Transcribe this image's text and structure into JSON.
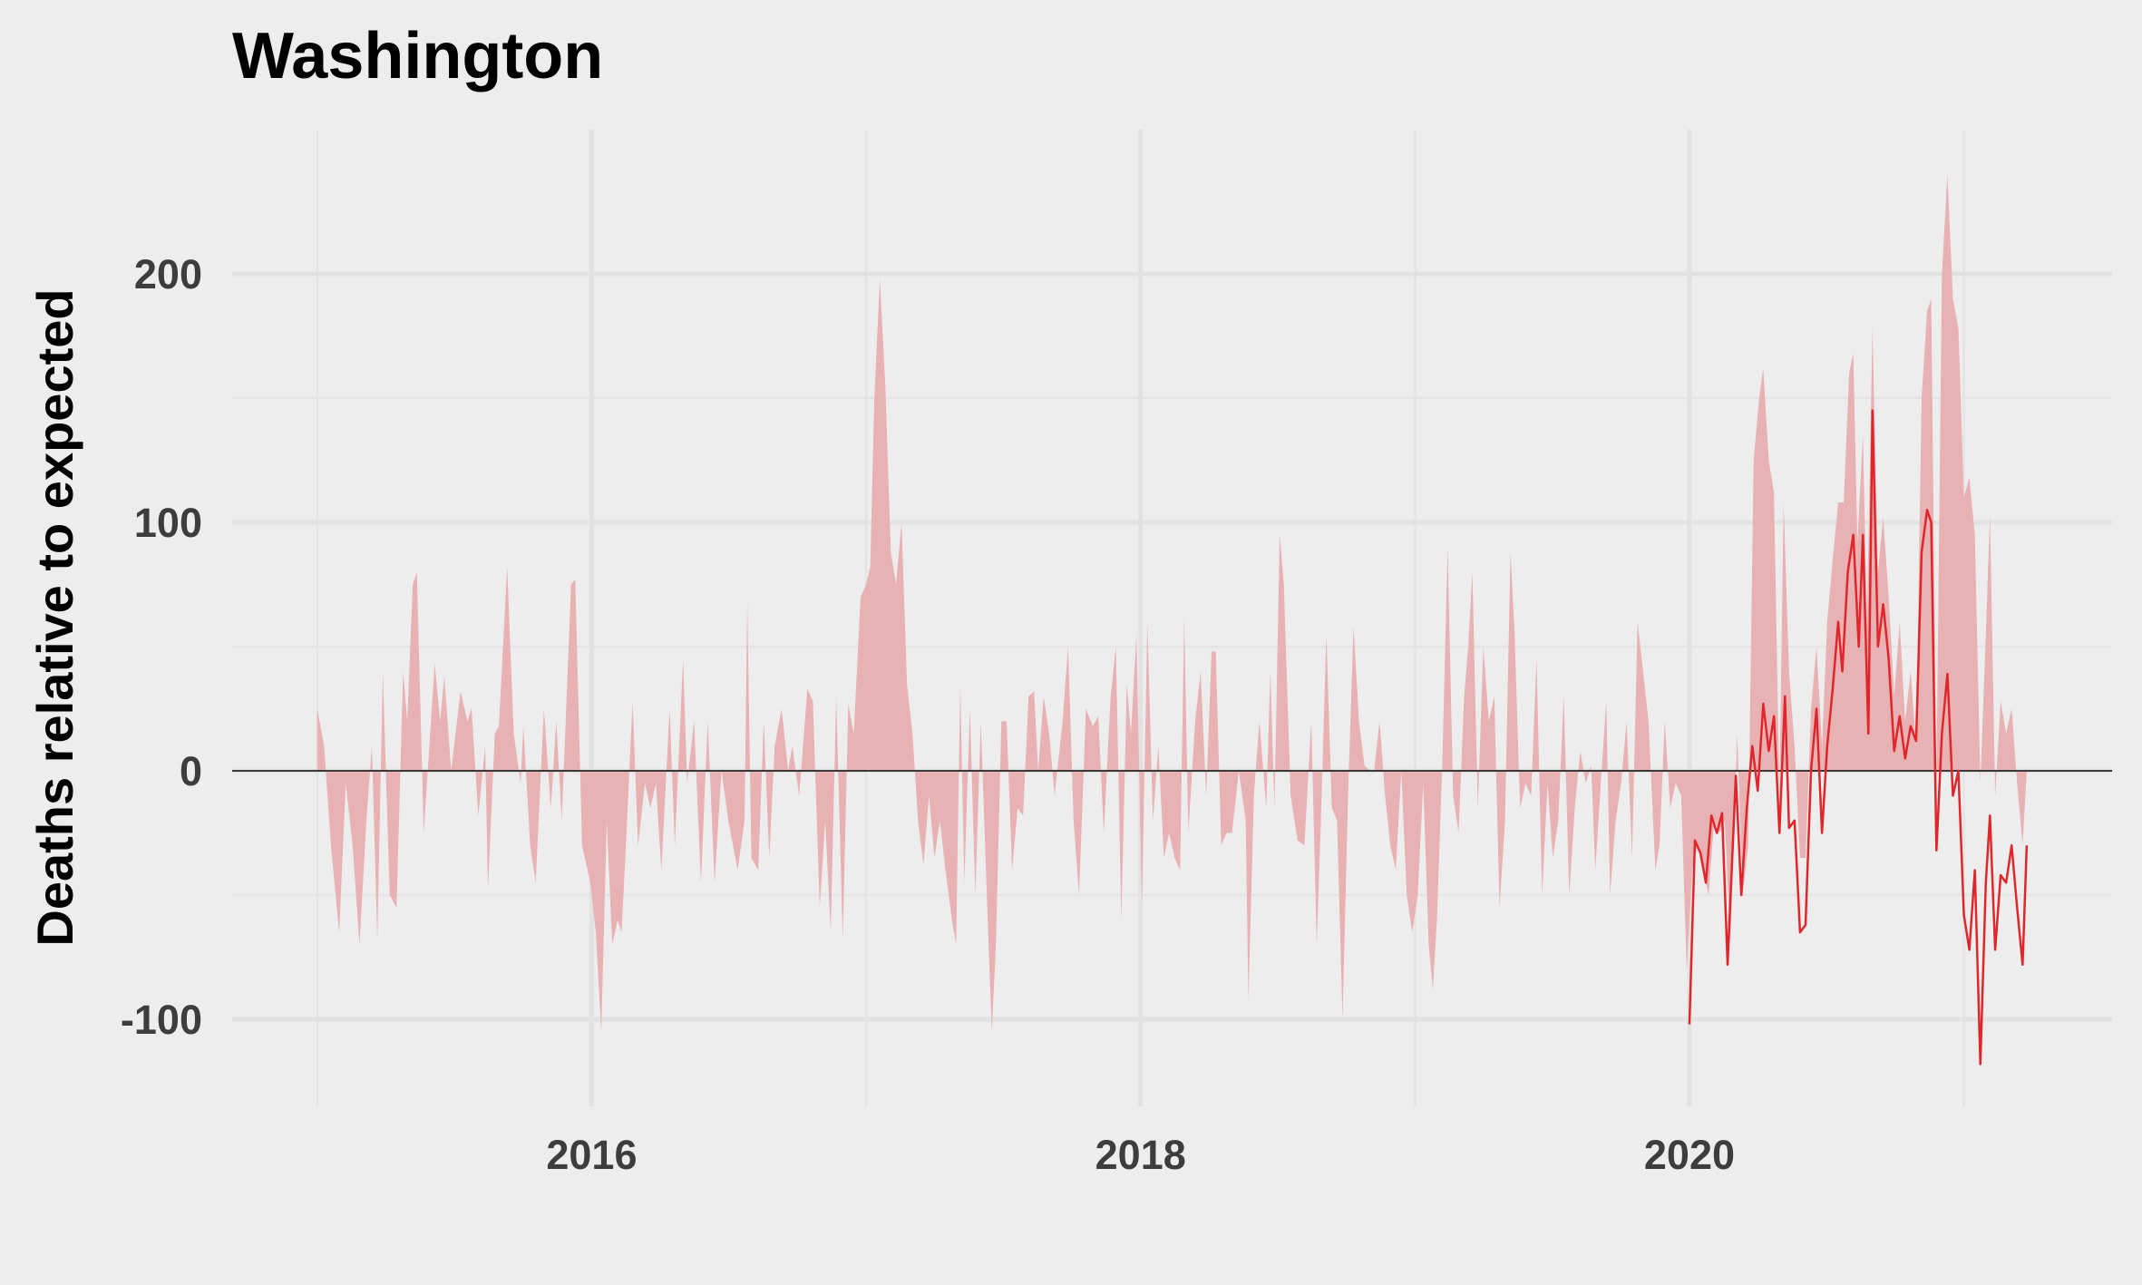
{
  "chart_data": {
    "type": "area",
    "title": "Washington",
    "y_label": "Deaths relative to expected",
    "xlim": [
      2014.69,
      2021.54
    ],
    "ylim": [
      -135,
      258
    ],
    "xticks": [
      2016,
      2018,
      2020
    ],
    "yticks": [
      -100,
      0,
      100,
      200
    ],
    "x_minor_grid": [
      2015,
      2017,
      2019,
      2021
    ],
    "y_minor_grid": [
      -50,
      50,
      150
    ],
    "grid": true,
    "zero_line": true,
    "series": [
      {
        "type": "area",
        "color": "#e8b1b3",
        "x": [
          2015.0,
          2015.025,
          2015.05,
          2015.08,
          2015.104,
          2015.129,
          2015.154,
          2015.179,
          2015.199,
          2015.219,
          2015.239,
          2015.264,
          2015.289,
          2015.313,
          2015.328,
          2015.348,
          2015.363,
          2015.388,
          2015.428,
          2015.448,
          2015.463,
          2015.488,
          2015.522,
          2015.547,
          2015.562,
          2015.587,
          2015.612,
          2015.622,
          2015.647,
          2015.662,
          2015.692,
          2015.716,
          2015.741,
          2015.751,
          2015.776,
          2015.796,
          2015.826,
          2015.851,
          2015.871,
          2015.891,
          2015.925,
          2015.94,
          2015.965,
          2015.995,
          2016.015,
          2016.035,
          2016.055,
          2016.075,
          2016.095,
          2016.109,
          2016.129,
          2016.149,
          2016.169,
          2016.194,
          2016.214,
          2016.234,
          2016.254,
          2016.284,
          2016.303,
          2016.333,
          2016.348,
          2016.373,
          2016.398,
          2016.423,
          2016.448,
          2016.473,
          2016.498,
          2016.532,
          2016.557,
          2016.567,
          2016.582,
          2016.607,
          2016.627,
          2016.647,
          2016.667,
          2016.692,
          2016.716,
          2016.731,
          2016.756,
          2016.786,
          2016.806,
          2016.831,
          2016.851,
          2016.871,
          2016.891,
          2016.915,
          2016.935,
          2016.955,
          2016.98,
          2017.0,
          2017.015,
          2017.03,
          2017.05,
          2017.07,
          2017.09,
          2017.109,
          2017.129,
          2017.149,
          2017.169,
          2017.189,
          2017.209,
          2017.229,
          2017.249,
          2017.269,
          2017.289,
          2017.313,
          2017.328,
          2017.343,
          2017.358,
          2017.378,
          2017.398,
          2017.418,
          2017.443,
          2017.458,
          2017.473,
          2017.493,
          2017.512,
          2017.532,
          2017.552,
          2017.572,
          2017.592,
          2017.612,
          2017.627,
          2017.647,
          2017.667,
          2017.687,
          2017.716,
          2017.736,
          2017.756,
          2017.776,
          2017.801,
          2017.826,
          2017.846,
          2017.866,
          2017.891,
          2017.91,
          2017.93,
          2017.95,
          2017.965,
          2017.985,
          2018.005,
          2018.025,
          2018.045,
          2018.065,
          2018.085,
          2018.104,
          2018.124,
          2018.144,
          2018.159,
          2018.174,
          2018.199,
          2018.219,
          2018.239,
          2018.259,
          2018.274,
          2018.294,
          2018.313,
          2018.333,
          2018.358,
          2018.383,
          2018.393,
          2018.413,
          2018.433,
          2018.458,
          2018.473,
          2018.488,
          2018.507,
          2018.522,
          2018.547,
          2018.572,
          2018.597,
          2018.622,
          2018.642,
          2018.657,
          2018.677,
          2018.697,
          2018.716,
          2018.736,
          2018.756,
          2018.776,
          2018.796,
          2018.816,
          2018.836,
          2018.851,
          2018.871,
          2018.891,
          2018.91,
          2018.93,
          2018.95,
          2018.97,
          2018.99,
          2019.01,
          2019.03,
          2019.05,
          2019.065,
          2019.08,
          2019.1,
          2019.119,
          2019.139,
          2019.159,
          2019.179,
          2019.194,
          2019.209,
          2019.229,
          2019.249,
          2019.269,
          2019.289,
          2019.308,
          2019.328,
          2019.348,
          2019.363,
          2019.383,
          2019.403,
          2019.423,
          2019.443,
          2019.463,
          2019.483,
          2019.502,
          2019.522,
          2019.542,
          2019.562,
          2019.582,
          2019.602,
          2019.622,
          2019.642,
          2019.657,
          2019.677,
          2019.697,
          2019.711,
          2019.731,
          2019.751,
          2019.771,
          2019.791,
          2019.811,
          2019.831,
          2019.851,
          2019.876,
          2019.891,
          2019.91,
          2019.93,
          2019.95,
          2019.97,
          2019.99,
          2020.01,
          2020.03,
          2020.05,
          2020.07,
          2020.09,
          2020.109,
          2020.129,
          2020.149,
          2020.174,
          2020.194,
          2020.214,
          2020.234,
          2020.254,
          2020.269,
          2020.289,
          2020.308,
          2020.328,
          2020.343,
          2020.363,
          2020.383,
          2020.403,
          2020.423,
          2020.443,
          2020.463,
          2020.483,
          2020.502,
          2020.522,
          2020.542,
          2020.562,
          2020.582,
          2020.597,
          2020.612,
          2020.632,
          2020.647,
          2020.667,
          2020.687,
          2020.706,
          2020.726,
          2020.746,
          2020.766,
          2020.786,
          2020.806,
          2020.826,
          2020.846,
          2020.866,
          2020.881,
          2020.9,
          2020.92,
          2020.94,
          2020.96,
          2020.98,
          2021.0,
          2021.02,
          2021.04,
          2021.06,
          2021.08,
          2021.095,
          2021.114,
          2021.134,
          2021.154,
          2021.174,
          2021.194,
          2021.214,
          2021.229
        ],
        "values": [
          25,
          10,
          -30,
          -65,
          -5,
          -30,
          -70,
          -20,
          10,
          -68,
          40,
          -50,
          -55,
          40,
          20,
          75,
          80,
          -25,
          43,
          20,
          38,
          0,
          32,
          20,
          25,
          -18,
          10,
          -48,
          15,
          18,
          82,
          15,
          -5,
          18,
          -30,
          -45,
          25,
          -15,
          20,
          -20,
          75,
          77,
          -30,
          -45,
          -65,
          -105,
          -20,
          -70,
          -60,
          -65,
          -20,
          28,
          -30,
          -5,
          -15,
          -5,
          -40,
          25,
          -30,
          45,
          -5,
          20,
          -45,
          20,
          -45,
          0,
          -20,
          -40,
          -20,
          68,
          -35,
          -40,
          20,
          -35,
          10,
          25,
          0,
          10,
          -10,
          33,
          28,
          -55,
          -20,
          -65,
          30,
          -68,
          27,
          15,
          70,
          75,
          82,
          150,
          198,
          155,
          88,
          75,
          100,
          35,
          15,
          -20,
          -38,
          -10,
          -35,
          -20,
          -40,
          -60,
          -70,
          35,
          -45,
          25,
          -50,
          20,
          -60,
          -105,
          -70,
          20,
          20,
          -40,
          -15,
          -18,
          30,
          32,
          0,
          30,
          15,
          -10,
          20,
          50,
          -20,
          -50,
          25,
          18,
          22,
          -25,
          30,
          50,
          -60,
          35,
          15,
          55,
          -55,
          60,
          -20,
          10,
          -35,
          -25,
          -35,
          -40,
          62,
          -25,
          20,
          40,
          -10,
          48,
          48,
          -30,
          -25,
          -25,
          0,
          -20,
          -92,
          -10,
          20,
          -15,
          40,
          -15,
          95,
          75,
          -10,
          -28,
          -30,
          20,
          -70,
          -20,
          55,
          -15,
          -20,
          -100,
          -10,
          58,
          20,
          2,
          0,
          0,
          20,
          -10,
          -30,
          -40,
          0,
          -50,
          -65,
          -50,
          -5,
          -70,
          -88,
          -60,
          5,
          90,
          -10,
          -25,
          30,
          50,
          80,
          -15,
          50,
          20,
          30,
          -55,
          -20,
          88,
          55,
          -15,
          -5,
          -10,
          45,
          -50,
          -5,
          -35,
          -20,
          30,
          -50,
          -15,
          8,
          -5,
          2,
          -40,
          -5,
          28,
          -50,
          -20,
          -5,
          20,
          -35,
          60,
          40,
          20,
          -40,
          -30,
          20,
          -15,
          -5,
          -10,
          -80,
          -40,
          -30,
          -40,
          -50,
          -20,
          -25,
          -20,
          -70,
          15,
          -50,
          -30,
          125,
          150,
          162,
          125,
          112,
          -10,
          108,
          40,
          10,
          -35,
          -35,
          25,
          50,
          10,
          60,
          85,
          108,
          108,
          160,
          168,
          92,
          135,
          60,
          178,
          80,
          102,
          70,
          30,
          60,
          20,
          40,
          10,
          150,
          185,
          190,
          -5,
          200,
          240,
          190,
          178,
          110,
          118,
          95,
          -5,
          55,
          103,
          -10,
          28,
          15,
          25,
          -5,
          -30,
          0
        ]
      },
      {
        "type": "line",
        "color": "#e0262a",
        "x": [
          2020.0,
          2020.02,
          2020.04,
          2020.06,
          2020.08,
          2020.1,
          2020.119,
          2020.139,
          2020.169,
          2020.189,
          2020.209,
          2020.229,
          2020.249,
          2020.269,
          2020.289,
          2020.308,
          2020.328,
          2020.348,
          2020.363,
          2020.383,
          2020.403,
          2020.423,
          2020.443,
          2020.463,
          2020.483,
          2020.502,
          2020.522,
          2020.542,
          2020.557,
          2020.577,
          2020.597,
          2020.617,
          2020.632,
          2020.652,
          2020.667,
          2020.687,
          2020.706,
          2020.726,
          2020.746,
          2020.766,
          2020.786,
          2020.806,
          2020.826,
          2020.846,
          2020.866,
          2020.881,
          2020.9,
          2020.92,
          2020.94,
          2020.96,
          2020.98,
          2021.0,
          2021.02,
          2021.04,
          2021.06,
          2021.08,
          2021.095,
          2021.114,
          2021.134,
          2021.154,
          2021.174,
          2021.194,
          2021.214,
          2021.229
        ],
        "values": [
          -102,
          -28,
          -33,
          -45,
          -18,
          -25,
          -17,
          -78,
          -2,
          -50,
          -15,
          10,
          -8,
          27,
          8,
          22,
          -25,
          30,
          -23,
          -20,
          -65,
          -62,
          0,
          25,
          -25,
          10,
          33,
          60,
          40,
          80,
          95,
          50,
          95,
          15,
          145,
          50,
          67,
          45,
          8,
          22,
          5,
          18,
          12,
          88,
          105,
          100,
          -32,
          15,
          39,
          -10,
          0,
          -58,
          -72,
          -40,
          -118,
          -45,
          -18,
          -72,
          -42,
          -45,
          -30,
          -55,
          -78,
          -30
        ]
      }
    ]
  }
}
